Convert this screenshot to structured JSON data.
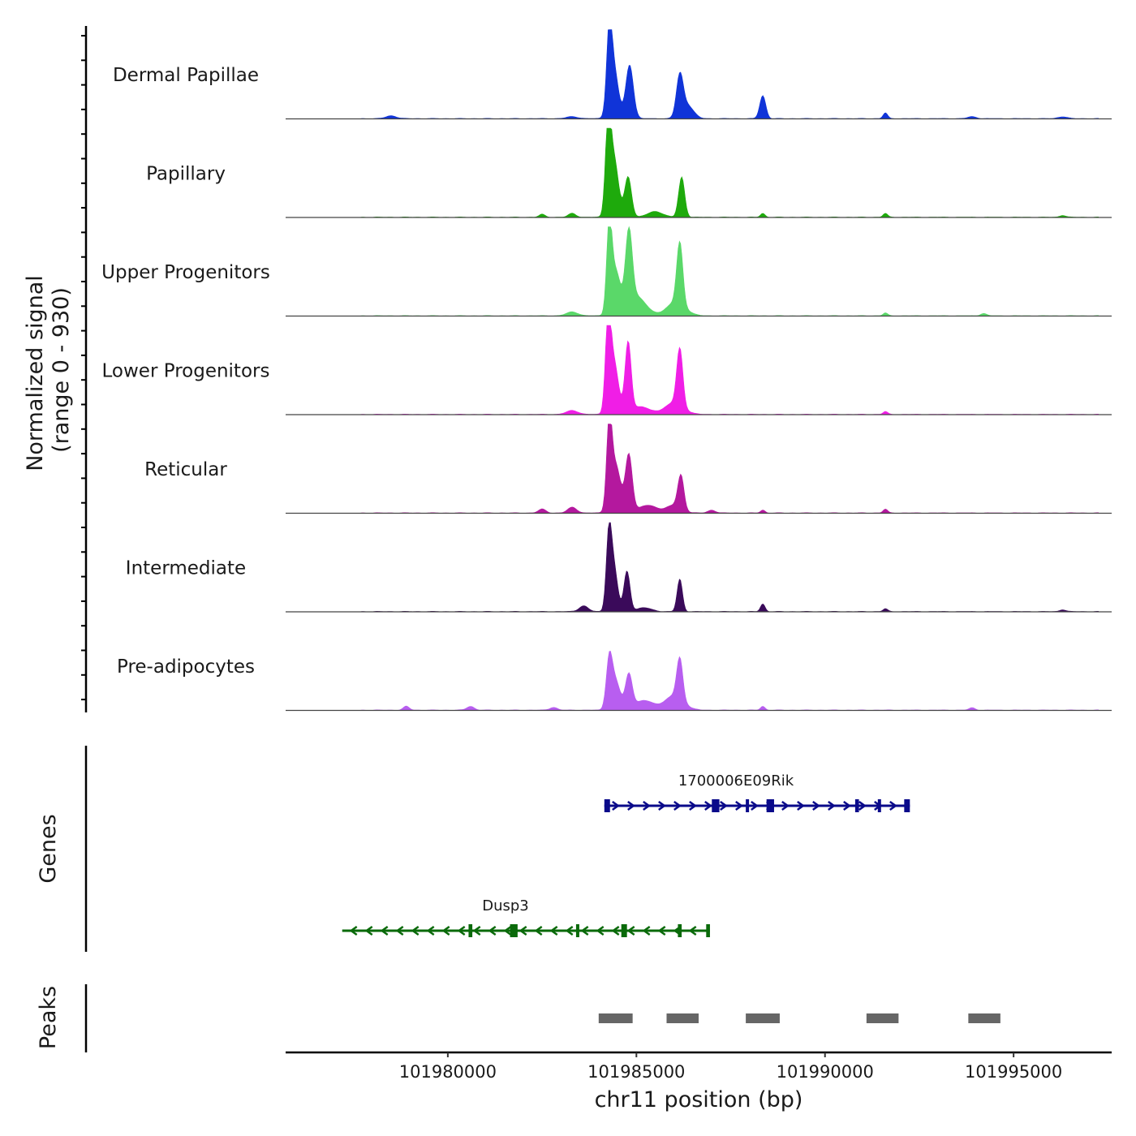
{
  "chart_data": {
    "type": "area",
    "y_axis_title_line1": "Normalized signal",
    "y_axis_title_line2": "(range 0 - 930)",
    "ylim": [
      0,
      930
    ],
    "xlim": [
      101975700,
      101997600
    ],
    "x_axis_label": "chr11 position (bp)",
    "x_ticks": [
      {
        "value": 101980000,
        "label": "101980000"
      },
      {
        "value": 101985000,
        "label": "101985000"
      },
      {
        "value": 101990000,
        "label": "101990000"
      },
      {
        "value": 101995000,
        "label": "101995000"
      }
    ],
    "tracks": [
      {
        "name": "Dermal Papillae",
        "color": "#1034d8",
        "peaks": [
          [
            101978500,
            30,
            140
          ],
          [
            101983300,
            20,
            160
          ],
          [
            101984280,
            760,
            70
          ],
          [
            101984400,
            520,
            120
          ],
          [
            101984820,
            560,
            100
          ],
          [
            101986150,
            420,
            90
          ],
          [
            101986350,
            140,
            160
          ],
          [
            101988350,
            240,
            80
          ],
          [
            101991600,
            60,
            60
          ],
          [
            101993900,
            20,
            120
          ],
          [
            101996300,
            20,
            120
          ]
        ]
      },
      {
        "name": "Papillary",
        "color": "#1eaa0c",
        "peaks": [
          [
            101982500,
            30,
            80
          ],
          [
            101983300,
            40,
            100
          ],
          [
            101984250,
            920,
            70
          ],
          [
            101984400,
            620,
            120
          ],
          [
            101984780,
            420,
            90
          ],
          [
            101985500,
            60,
            200
          ],
          [
            101986200,
            420,
            80
          ],
          [
            101988350,
            40,
            60
          ],
          [
            101991600,
            40,
            60
          ],
          [
            101996300,
            20,
            80
          ]
        ]
      },
      {
        "name": "Upper Progenitors",
        "color": "#5ad869",
        "peaks": [
          [
            101983300,
            40,
            160
          ],
          [
            101984280,
            900,
            70
          ],
          [
            101984450,
            450,
            120
          ],
          [
            101984800,
            780,
            90
          ],
          [
            101985000,
            200,
            250
          ],
          [
            101986150,
            650,
            80
          ],
          [
            101986050,
            140,
            250
          ],
          [
            101991600,
            30,
            60
          ],
          [
            101994200,
            25,
            80
          ]
        ]
      },
      {
        "name": "Lower Progenitors",
        "color": "#f01ee6",
        "peaks": [
          [
            101983300,
            40,
            160
          ],
          [
            101984250,
            930,
            70
          ],
          [
            101984400,
            550,
            120
          ],
          [
            101984780,
            730,
            80
          ],
          [
            101985100,
            80,
            250
          ],
          [
            101986150,
            600,
            80
          ],
          [
            101986000,
            120,
            250
          ],
          [
            101991600,
            30,
            60
          ]
        ]
      },
      {
        "name": "Reticular",
        "color": "#b4189e",
        "peaks": [
          [
            101982500,
            40,
            100
          ],
          [
            101983300,
            60,
            120
          ],
          [
            101984280,
            870,
            70
          ],
          [
            101984450,
            500,
            130
          ],
          [
            101984800,
            600,
            90
          ],
          [
            101985300,
            80,
            250
          ],
          [
            101986180,
            350,
            80
          ],
          [
            101986000,
            80,
            200
          ],
          [
            101987000,
            30,
            100
          ],
          [
            101988350,
            30,
            60
          ],
          [
            101991600,
            40,
            60
          ]
        ]
      },
      {
        "name": "Intermediate",
        "color": "#3a0a5a",
        "peaks": [
          [
            101983600,
            60,
            120
          ],
          [
            101984270,
            750,
            70
          ],
          [
            101984400,
            460,
            100
          ],
          [
            101984750,
            420,
            80
          ],
          [
            101985200,
            40,
            200
          ],
          [
            101986150,
            340,
            70
          ],
          [
            101988350,
            80,
            60
          ],
          [
            101991600,
            30,
            60
          ],
          [
            101996300,
            20,
            80
          ]
        ]
      },
      {
        "name": "Pre-adipocytes",
        "color": "#b85ef0",
        "peaks": [
          [
            101978900,
            40,
            80
          ],
          [
            101980600,
            40,
            100
          ],
          [
            101982800,
            30,
            100
          ],
          [
            101984280,
            500,
            80
          ],
          [
            101984450,
            300,
            120
          ],
          [
            101984800,
            360,
            90
          ],
          [
            101985200,
            100,
            250
          ],
          [
            101986150,
            430,
            80
          ],
          [
            101986000,
            150,
            250
          ],
          [
            101988350,
            40,
            60
          ],
          [
            101993900,
            25,
            80
          ]
        ]
      }
    ],
    "genes_axis_title": "Genes",
    "genes": [
      {
        "name": "1700006E09Rik",
        "color": "#0a0a8a",
        "start": 101984150,
        "end": 101992250,
        "strand": "+",
        "exons": [
          [
            101984150,
            101984300
          ],
          [
            101987000,
            101987200
          ],
          [
            101987900,
            101987950
          ],
          [
            101988450,
            101988650
          ],
          [
            101990800,
            101990900
          ],
          [
            101991400,
            101991450
          ],
          [
            101992100,
            101992250
          ]
        ]
      },
      {
        "name": "Dusp3",
        "color": "#0a6a0a",
        "start": 101977200,
        "end": 101986950,
        "strand": "-",
        "exons": [
          [
            101980550,
            101980650
          ],
          [
            101981650,
            101981850
          ],
          [
            101983400,
            101983450
          ],
          [
            101984600,
            101984750
          ],
          [
            101986100,
            101986200
          ],
          [
            101986850,
            101986950
          ]
        ]
      }
    ],
    "peaks_axis_title": "Peaks",
    "peak_regions": [
      [
        101984000,
        101984900
      ],
      [
        101985800,
        101986650
      ],
      [
        101987900,
        101988800
      ],
      [
        101991100,
        101991950
      ],
      [
        101993800,
        101994650
      ]
    ]
  }
}
